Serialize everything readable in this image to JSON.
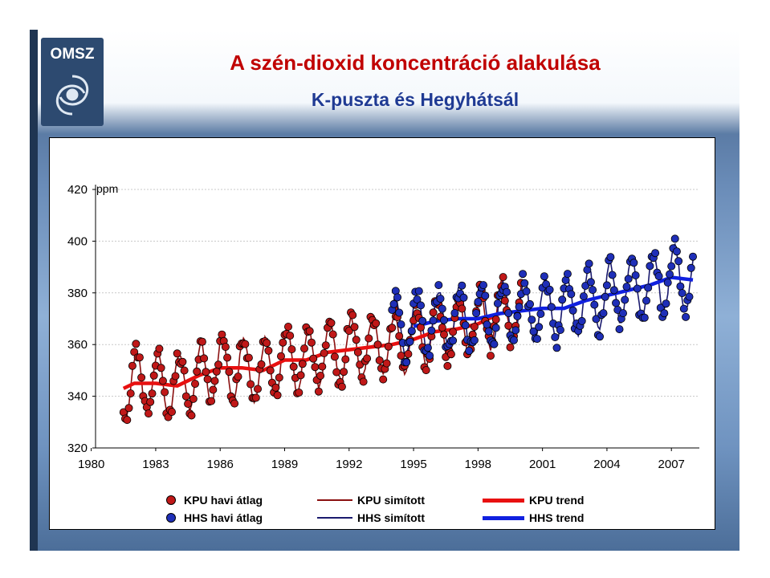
{
  "header": {
    "logo_text": "OMSZ",
    "title": "A szén-dioxid koncentráció alakulása",
    "subtitle": "K-puszta és Hegyhátsál"
  },
  "colors": {
    "title": "#c00000",
    "subtitle": "#1f3a93",
    "kpu_dot": "#c01818",
    "hhs_dot": "#1f2fb8",
    "kpu_smoothed": "#8b1010",
    "hhs_smoothed": "#1a1a6e",
    "kpu_trend": "#e81010",
    "hhs_trend": "#1020e0"
  },
  "chart_data": {
    "type": "line",
    "title": "",
    "ylabel": "ppm",
    "xlabel": "",
    "xlim": [
      1980.2,
      2008.3
    ],
    "ylim": [
      320,
      420
    ],
    "y_ticks": [
      "320",
      "340",
      "360",
      "380",
      "400",
      "420"
    ],
    "x_ticks": [
      "1980",
      "1983",
      "1986",
      "1989",
      "1992",
      "1995",
      "1998",
      "2001",
      "2004",
      "2007"
    ],
    "grid": "horizontal",
    "legend_position": "bottom",
    "seasonal_amplitude_estimate": 12,
    "series": [
      {
        "name": "KPU trend",
        "style": "thick-line",
        "x": [
          1981.5,
          1982,
          1983,
          1984,
          1985,
          1986,
          1987,
          1988,
          1989,
          1990,
          1991,
          1992,
          1993,
          1994,
          1995,
          1996,
          1997,
          1998,
          1999
        ],
        "y": [
          343,
          345,
          345,
          344,
          348,
          351,
          351,
          350,
          354,
          354,
          357,
          358,
          359,
          360,
          362,
          365,
          366,
          368,
          372
        ]
      },
      {
        "name": "HHS trend",
        "style": "thick-line",
        "x": [
          1995,
          1996,
          1997,
          1998,
          1999,
          2000,
          2001,
          2002,
          2003,
          2004,
          2005,
          2006,
          2007,
          2008
        ],
        "y": [
          367,
          369,
          370,
          370,
          372,
          373,
          374,
          374,
          377,
          379,
          381,
          383,
          386,
          385
        ]
      },
      {
        "name": "KPU simított",
        "style": "thin-line",
        "x": [
          1981.5,
          2000
        ],
        "y": [
          343,
          373
        ]
      },
      {
        "name": "HHS simított",
        "style": "thin-line",
        "x": [
          1994,
          2008
        ],
        "y": [
          367,
          386
        ]
      },
      {
        "name": "KPU havi átlag",
        "style": "dots",
        "x": [
          1981.5,
          2000
        ],
        "y": [
          343,
          373
        ]
      },
      {
        "name": "HHS havi átlag",
        "style": "dots",
        "x": [
          1994,
          2008
        ],
        "y": [
          367,
          386
        ]
      }
    ],
    "legend": [
      {
        "label": "KPU havi átlag",
        "kind": "dot",
        "series": "kpu"
      },
      {
        "label": "KPU simított",
        "kind": "thin",
        "series": "kpu"
      },
      {
        "label": "KPU trend",
        "kind": "thick",
        "series": "kpu"
      },
      {
        "label": "HHS havi átlag",
        "kind": "dot",
        "series": "hhs"
      },
      {
        "label": "HHS simított",
        "kind": "thin",
        "series": "hhs"
      },
      {
        "label": "HHS trend",
        "kind": "thick",
        "series": "hhs"
      }
    ]
  }
}
